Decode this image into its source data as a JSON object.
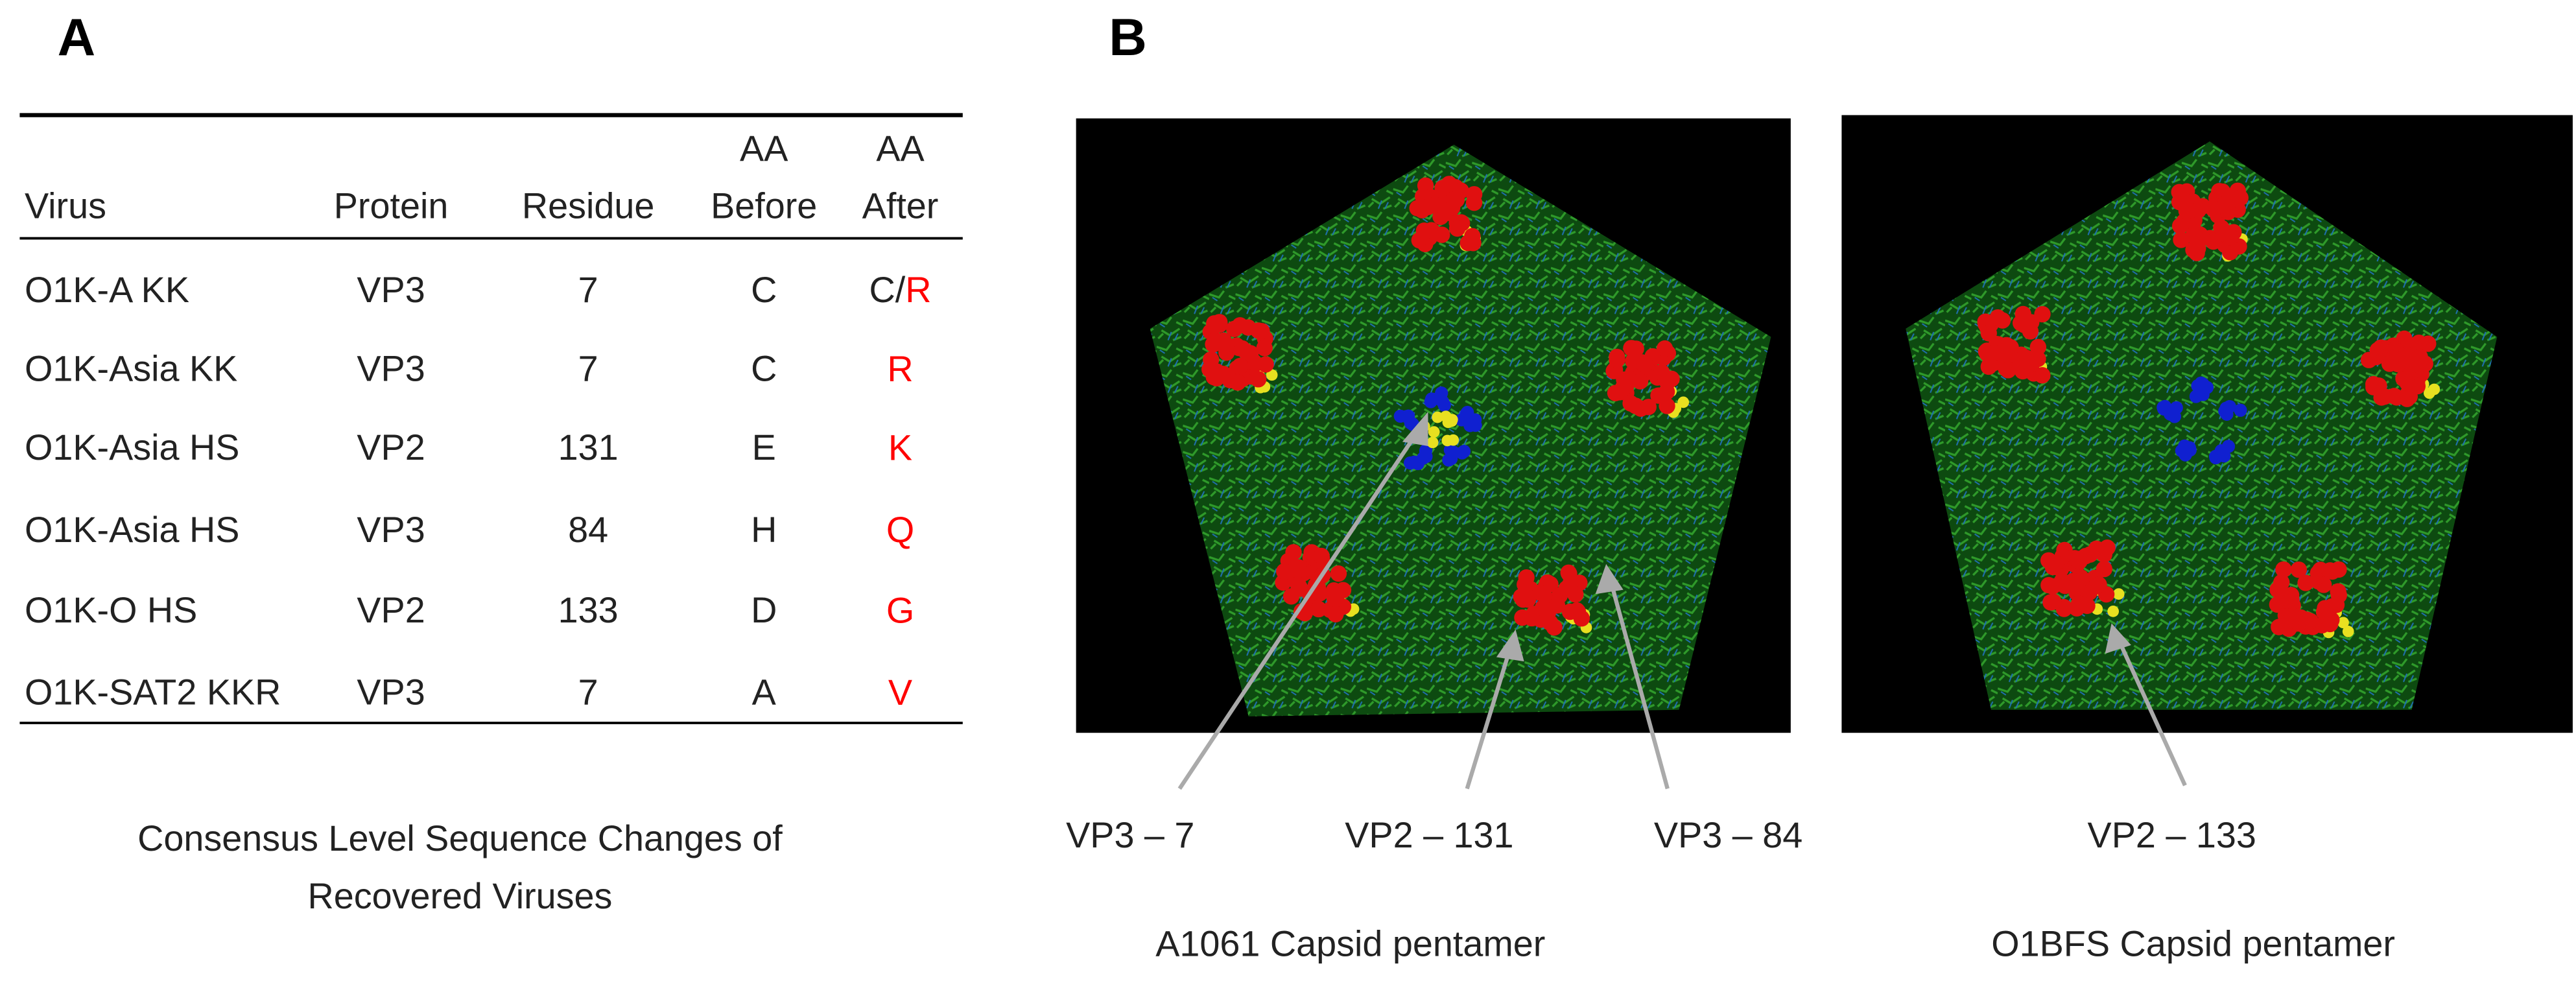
{
  "panel_a": {
    "label": "A",
    "table": {
      "columns": [
        [
          "Virus"
        ],
        [
          "Protein"
        ],
        [
          "Residue"
        ],
        [
          "AA",
          "Before"
        ],
        [
          "AA",
          "After"
        ]
      ],
      "rows": [
        {
          "virus": "O1K-A KK",
          "protein": "VP3",
          "residue": "7",
          "before": "C",
          "after": [
            "C/",
            "R"
          ]
        },
        {
          "virus": "O1K-Asia KK",
          "protein": "VP3",
          "residue": "7",
          "before": "C",
          "after": [
            "R"
          ]
        },
        {
          "virus": "O1K-Asia HS",
          "protein": "VP2",
          "residue": "131",
          "before": "E",
          "after": [
            "K"
          ]
        },
        {
          "virus": "O1K-Asia HS",
          "protein": "VP3",
          "residue": "84",
          "before": "H",
          "after": [
            "Q"
          ]
        },
        {
          "virus": "O1K-O HS",
          "protein": "VP2",
          "residue": "133",
          "before": "D",
          "after": [
            "G"
          ]
        },
        {
          "virus": "O1K-SAT2 KKR",
          "protein": "VP3",
          "residue": "7",
          "before": "A",
          "after": [
            "V"
          ]
        }
      ]
    },
    "caption": [
      "Consensus Level Sequence Changes of",
      "Recovered Viruses"
    ]
  },
  "panel_b": {
    "label": "B",
    "structures": [
      {
        "caption": "A1061 Capsid pentamer",
        "annotations": [
          "VP3 – 7",
          "VP2 – 131",
          "VP3 – 84"
        ]
      },
      {
        "caption": "O1BFS Capsid pentamer",
        "annotations": [
          "VP2 – 133"
        ]
      }
    ]
  }
}
